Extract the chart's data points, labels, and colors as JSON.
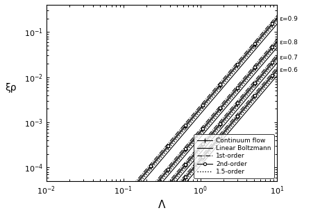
{
  "xlim": [
    0.01,
    10
  ],
  "ylim_low": 5e-05,
  "ylim_high": 0.4,
  "xlabel": "Λ",
  "ylabel": "ξρ",
  "epsilons": [
    0.6,
    0.7,
    0.8,
    0.9
  ],
  "epsilon_labels": [
    "ε=0.6",
    "ε=0.7",
    "ε=0.8",
    "ε=0.9"
  ],
  "legend_entries": [
    "Continuum flow",
    "Linear Boltzmann",
    "1st-order",
    "2nd-order",
    "1.5-order"
  ],
  "model_multipliers": [
    1.0,
    0.78,
    1.2,
    1.08,
    0.9
  ],
  "base_prefactor": 0.0002,
  "slope": 2.0,
  "title": ""
}
